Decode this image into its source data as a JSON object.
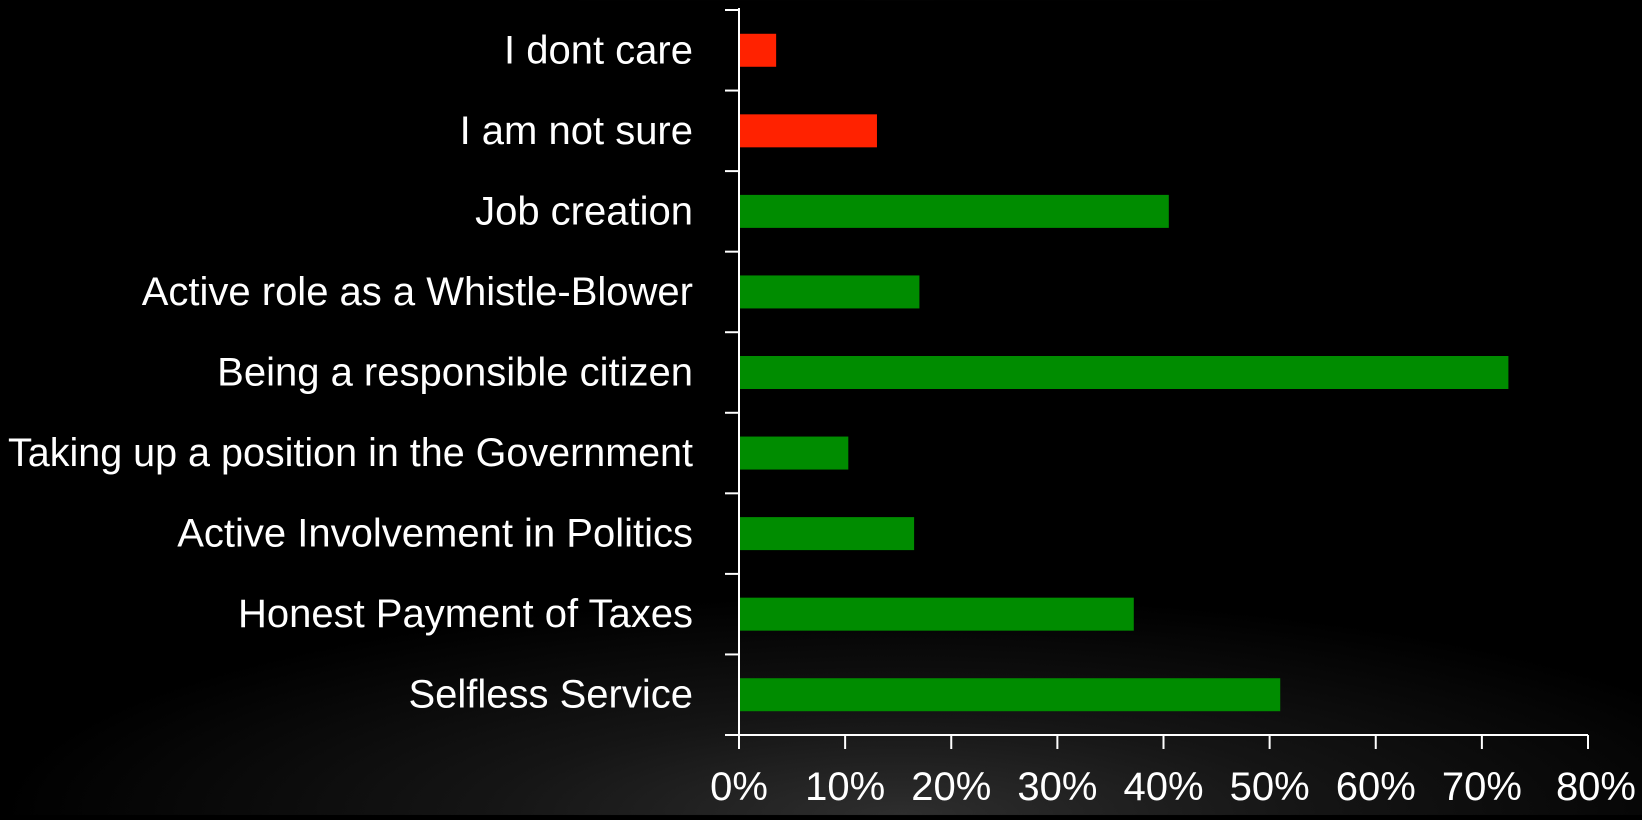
{
  "chart_data": {
    "type": "bar",
    "orientation": "horizontal",
    "categories": [
      "I dont care",
      "I am not sure",
      "Job creation",
      "Active role as a Whistle-Blower",
      "Being a responsible citizen",
      "Taking up a position in the Government",
      "Active Involvement in Politics",
      "Honest Payment of Taxes",
      "Selfless Service"
    ],
    "values": [
      3.5,
      13,
      40.5,
      17,
      72.5,
      10.3,
      16.5,
      37.2,
      51
    ],
    "unit": "%",
    "xlim": [
      0,
      80
    ],
    "xticks": [
      "0%",
      "10%",
      "20%",
      "30%",
      "40%",
      "50%",
      "60%",
      "70%",
      "80%"
    ],
    "grid": false,
    "legend": "none",
    "colors": {
      "negative": "#ff2200",
      "positive": "#008c00",
      "axis": "#ffffff",
      "text": "#ffffff"
    },
    "bar_color_groups": [
      "negative",
      "negative",
      "positive",
      "positive",
      "positive",
      "positive",
      "positive",
      "positive",
      "positive"
    ]
  }
}
